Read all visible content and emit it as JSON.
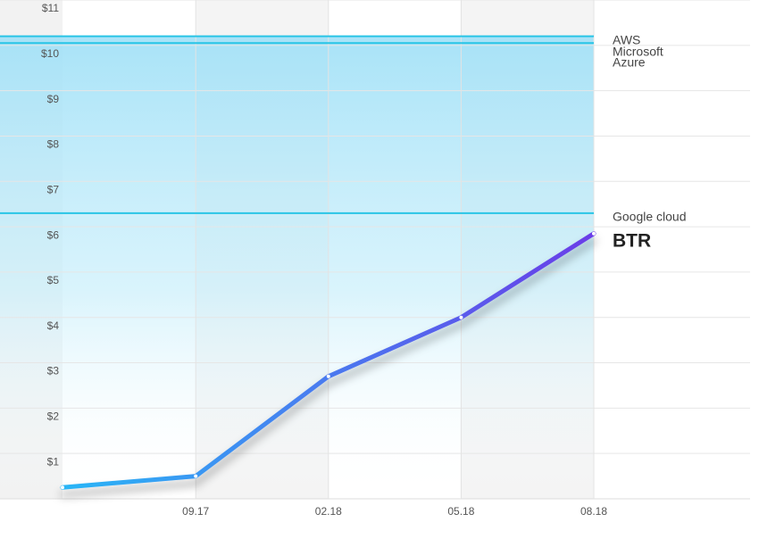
{
  "chart_data": {
    "type": "line",
    "categories": [
      null,
      "09.17",
      "02.18",
      "05.18",
      "08.18"
    ],
    "series": [
      {
        "name": "BTR",
        "color": "#29b6f6",
        "color_end": "#6a3de8",
        "values": [
          0.25,
          0.5,
          2.7,
          4.0,
          5.85
        ]
      }
    ],
    "reference_lines": [
      {
        "name": "AWS",
        "value": 10.2
      },
      {
        "name": "Microsoft Azure",
        "value": 10.05
      },
      {
        "name": "Google cloud",
        "value": 6.3
      }
    ],
    "reference_color": "#29c5e6",
    "ylim": [
      0,
      11
    ],
    "yticks": [
      {
        "value": 1,
        "label": "$1"
      },
      {
        "value": 2,
        "label": "$2"
      },
      {
        "value": 3,
        "label": "$3"
      },
      {
        "value": 4,
        "label": "$4"
      },
      {
        "value": 5,
        "label": "$5"
      },
      {
        "value": 6,
        "label": "$6"
      },
      {
        "value": 7,
        "label": "$7"
      },
      {
        "value": 8,
        "label": "$8"
      },
      {
        "value": 9,
        "label": "$9"
      },
      {
        "value": 10,
        "label": "$10"
      },
      {
        "value": 11,
        "label": "$11"
      }
    ],
    "grid": true
  }
}
